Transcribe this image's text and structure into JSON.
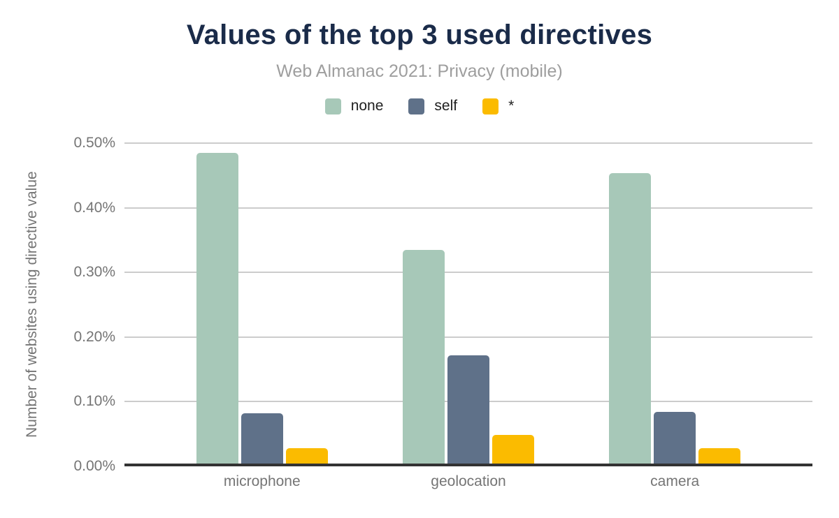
{
  "chart_data": {
    "type": "bar",
    "title": "Values of the top 3 used directives",
    "subtitle": "Web Almanac 2021: Privacy (mobile)",
    "categories": [
      "microphone",
      "geolocation",
      "camera"
    ],
    "series": [
      {
        "name": "none",
        "color": "#a7c8b8",
        "values": [
          0.485,
          0.335,
          0.454
        ]
      },
      {
        "name": "self",
        "color": "#5f7189",
        "values": [
          0.082,
          0.172,
          0.084
        ]
      },
      {
        "name": "*",
        "color": "#fbbb00",
        "values": [
          0.028,
          0.049,
          0.028
        ]
      }
    ],
    "xlabel": "",
    "ylabel": "Number of websites using directive value",
    "ylim": [
      0,
      0.5
    ],
    "yticks": [
      "0.50%",
      "0.40%",
      "0.30%",
      "0.20%",
      "0.10%",
      "0.00%"
    ],
    "ytick_values": [
      0.5,
      0.4,
      0.3,
      0.2,
      0.1,
      0.0
    ],
    "value_unit": "%",
    "grid": true,
    "legend_position": "top",
    "group_centers": [
      0.2,
      0.5,
      0.8
    ]
  },
  "colors": {
    "title": "#1a2b49",
    "subtitle": "#9e9e9e",
    "axis_text": "#757575",
    "gridline": "#cccccc",
    "axis_line": "#333333",
    "background": "#ffffff"
  }
}
